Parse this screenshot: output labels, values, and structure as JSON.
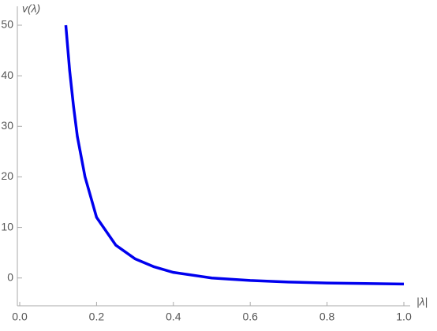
{
  "chart_data": {
    "type": "line",
    "y_label": "v(λ)",
    "x_label": "|λ|",
    "x": [
      0.12,
      0.13,
      0.14,
      0.15,
      0.17,
      0.2,
      0.25,
      0.3,
      0.35,
      0.4,
      0.5,
      0.6,
      0.7,
      0.8,
      0.9,
      1.0
    ],
    "series": [
      {
        "color": "#0000ee",
        "values": [
          50,
          41,
          34,
          28,
          20,
          12,
          6.5,
          3.8,
          2.2,
          1.1,
          0,
          -0.5,
          -0.8,
          -1,
          -1.1,
          -1.2
        ]
      }
    ],
    "xlim": [
      0,
      1
    ],
    "ylim": [
      -5.5,
      50
    ],
    "xticks": [
      {
        "value": 0,
        "label": "0.0"
      },
      0.2,
      0.4,
      0.6,
      0.8,
      {
        "value": 1,
        "label": "1.0"
      }
    ],
    "yticks": [
      0,
      10,
      20,
      30,
      40,
      50
    ]
  }
}
